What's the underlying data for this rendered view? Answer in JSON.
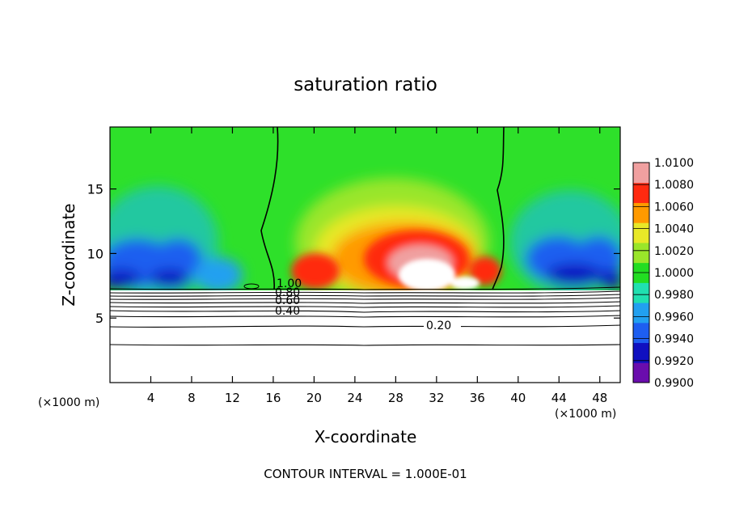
{
  "chart_data": {
    "type": "heatmap",
    "title": "saturation ratio",
    "xlabel": "X-coordinate",
    "ylabel": "Z-coordinate",
    "x_unit": "(×1000 m)",
    "x_unit_right": "(×1000 m)",
    "xlim": [
      0,
      50
    ],
    "ylim": [
      0,
      19.8
    ],
    "x_ticks": [
      4,
      8,
      12,
      16,
      20,
      24,
      28,
      32,
      36,
      40,
      44,
      48
    ],
    "y_ticks": [
      5,
      10,
      15
    ],
    "colorbar": {
      "levels": [
        0.99,
        0.992,
        0.994,
        0.996,
        0.998,
        1.0,
        1.002,
        1.004,
        1.006,
        1.008,
        1.01
      ],
      "labels": [
        "0.9900",
        "0.9920",
        "0.9940",
        "0.9960",
        "0.9980",
        "1.0000",
        "1.0020",
        "1.0040",
        "1.0060",
        "1.0080",
        "1.0100"
      ],
      "colors": [
        "#6a0dad",
        "#1010c0",
        "#1e5ef0",
        "#22a0f0",
        "#20e0b0",
        "#22dd22",
        "#9ae62a",
        "#e8e828",
        "#ff9a00",
        "#ff2a10",
        "#f0a0a0"
      ]
    },
    "contour_labels": [
      "1.00",
      "0.80",
      "0.60",
      "0.40",
      "0.20"
    ],
    "contour_interval_text": "CONTOUR INTERVAL = 1.000E-01",
    "saturated_boundary_x": [
      16.2,
      38.0
    ],
    "cloud_base_z": 7.2
  }
}
